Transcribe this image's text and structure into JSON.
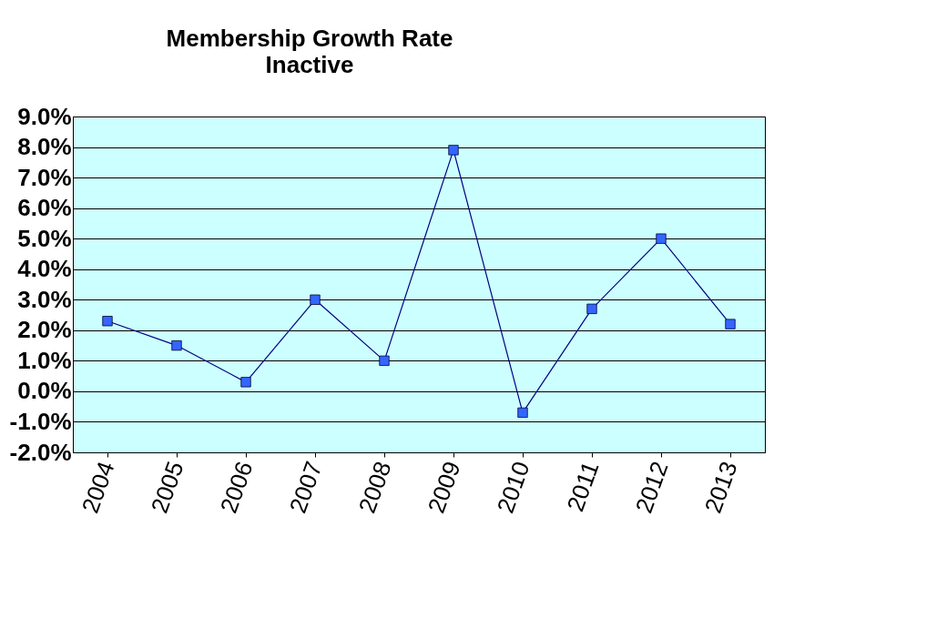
{
  "chart_data": {
    "type": "line",
    "title": "Membership Growth Rate",
    "subtitle": "Inactive",
    "categories": [
      "2004",
      "2005",
      "2006",
      "2007",
      "2008",
      "2009",
      "2010",
      "2011",
      "2012",
      "2013"
    ],
    "series": [
      {
        "color": "#000080",
        "values": [
          2.3,
          1.5,
          0.3,
          3.0,
          1.0,
          7.9,
          -0.7,
          2.7,
          5.0,
          2.2
        ]
      }
    ],
    "ylim": [
      -2,
      9
    ],
    "yticks": [
      {
        "value": -2,
        "label": "-2.0%"
      },
      {
        "value": -1,
        "label": "-1.0%"
      },
      {
        "value": 0,
        "label": "0.0%"
      },
      {
        "value": 1,
        "label": "1.0%"
      },
      {
        "value": 2,
        "label": "2.0%"
      },
      {
        "value": 3,
        "label": "3.0%"
      },
      {
        "value": 4,
        "label": "4.0%"
      },
      {
        "value": 5,
        "label": "5.0%"
      },
      {
        "value": 6,
        "label": "6.0%"
      },
      {
        "value": 7,
        "label": "7.0%"
      },
      {
        "value": 8,
        "label": "8.0%"
      },
      {
        "value": 9,
        "label": "9.0%"
      }
    ],
    "grid": "y",
    "marker": "square",
    "line_style": "solid",
    "legend": false
  }
}
